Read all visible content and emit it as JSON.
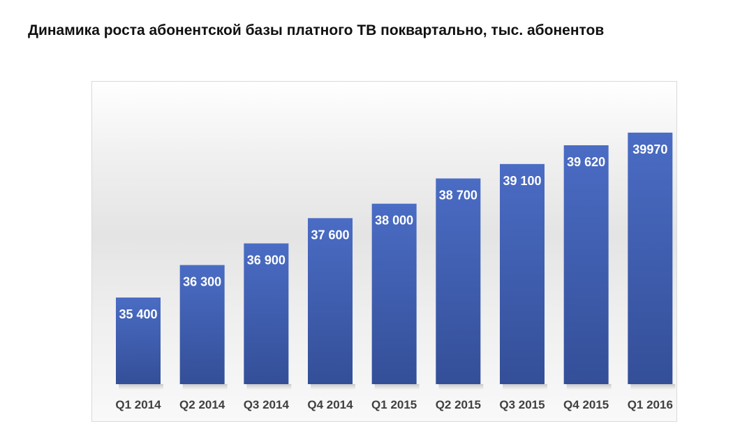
{
  "title": "Динамика роста абонентской базы платного ТВ поквартально, тыс. абонентов",
  "chart_data": {
    "type": "bar",
    "title": "Динамика роста абонентской базы платного ТВ поквартально, тыс. абонентов",
    "categories": [
      "Q1 2014",
      "Q2 2014",
      "Q3 2014",
      "Q4 2014",
      "Q1 2015",
      "Q2 2015",
      "Q3 2015",
      "Q4 2015",
      "Q1 2016"
    ],
    "values": [
      35400,
      36300,
      36900,
      37600,
      38000,
      38700,
      39100,
      39620,
      39970
    ],
    "value_labels": [
      "35 400",
      "36 300",
      "36 900",
      "37 600",
      "38 000",
      "38 700",
      "39 100",
      "39 620",
      "39970"
    ],
    "xlabel": "",
    "ylabel": "",
    "ylim": [
      33000,
      40800
    ],
    "grid": false,
    "legend": "none",
    "bar_color_top": "#4a6cc4",
    "bar_color_bottom": "#344f98",
    "label_color": "#ffffff"
  }
}
